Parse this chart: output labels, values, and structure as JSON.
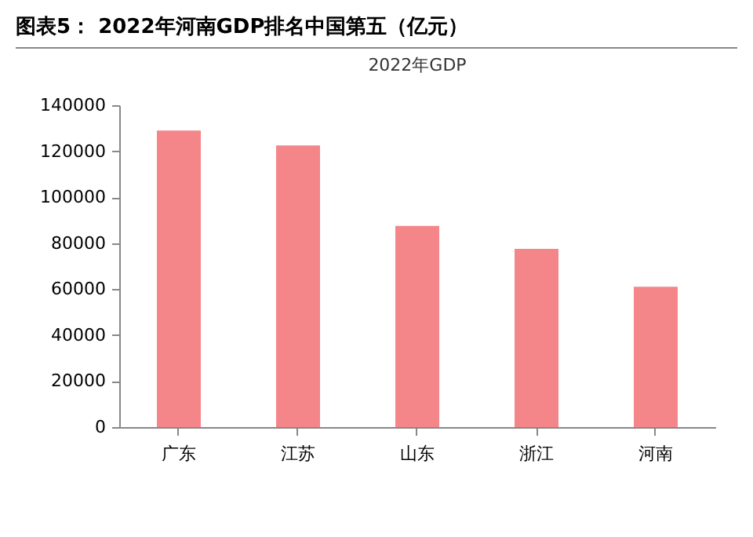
{
  "chart_data": {
    "type": "bar",
    "title": "图表5： 2022年河南GDP排名中国第五（亿元）",
    "subtitle": "2022年GDP",
    "categories": [
      "广东",
      "江苏",
      "山东",
      "浙江",
      "河南"
    ],
    "values": [
      129000,
      122500,
      87500,
      77500,
      61000
    ],
    "color": "#f4868a",
    "ylim": [
      0,
      140000
    ],
    "yticks": [
      0,
      20000,
      40000,
      60000,
      80000,
      100000,
      120000,
      140000
    ],
    "grid": false,
    "legend": false
  }
}
